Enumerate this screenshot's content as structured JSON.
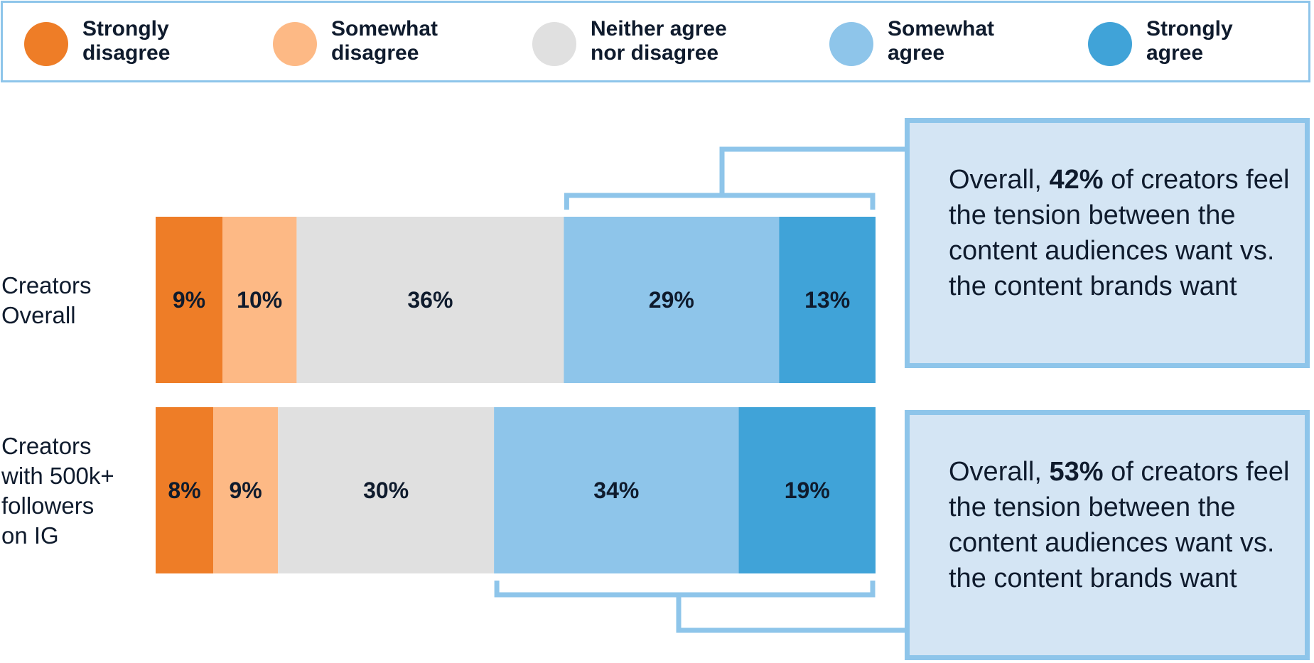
{
  "colors": {
    "strongly_disagree": "#ee7d27",
    "somewhat_disagree": "#fdb985",
    "neither": "#e0e0e0",
    "somewhat_agree": "#8ec5ea",
    "strongly_agree": "#40a3d8",
    "bracket": "#8ec5ea"
  },
  "legend": [
    {
      "label": "Strongly disagree",
      "color": "#ee7d27"
    },
    {
      "label": "Somewhat disagree",
      "color": "#fdb985"
    },
    {
      "label": "Neither agree nor disagree",
      "color": "#e0e0e0"
    },
    {
      "label": "Somewhat agree",
      "color": "#8ec5ea"
    },
    {
      "label": "Strongly agree",
      "color": "#40a3d8"
    }
  ],
  "chart_data": {
    "type": "bar",
    "orientation": "horizontal",
    "stacked": true,
    "title": "",
    "xlabel": "",
    "ylabel": "",
    "categories": [
      {
        "lines": [
          "Creators",
          "Overall"
        ]
      },
      {
        "lines": [
          "Creators",
          "with 500k+",
          "followers",
          "on IG"
        ]
      }
    ],
    "series": [
      {
        "name": "Strongly disagree",
        "values": [
          9,
          8
        ],
        "labels": [
          "9%",
          "8%"
        ]
      },
      {
        "name": "Somewhat disagree",
        "values": [
          10,
          9
        ],
        "labels": [
          "10%",
          "9%"
        ]
      },
      {
        "name": "Neither agree nor disagree",
        "values": [
          36,
          30
        ],
        "labels": [
          "36%",
          "30%"
        ]
      },
      {
        "name": "Somewhat agree",
        "values": [
          29,
          34
        ],
        "labels": [
          "29%",
          "34%"
        ]
      },
      {
        "name": "Strongly agree",
        "values": [
          13,
          19
        ],
        "labels": [
          "13%",
          "19%"
        ]
      }
    ],
    "grid": false,
    "legend_position": "top"
  },
  "callouts": [
    {
      "prefix": "Overall, ",
      "highlight": "42%",
      "suffix": " of creators feel the tension between the content audiences want vs. the content brands want"
    },
    {
      "prefix": "Overall, ",
      "highlight": "53%",
      "suffix": " of creators feel the tension between the content audiences want vs. the content brands want"
    }
  ]
}
